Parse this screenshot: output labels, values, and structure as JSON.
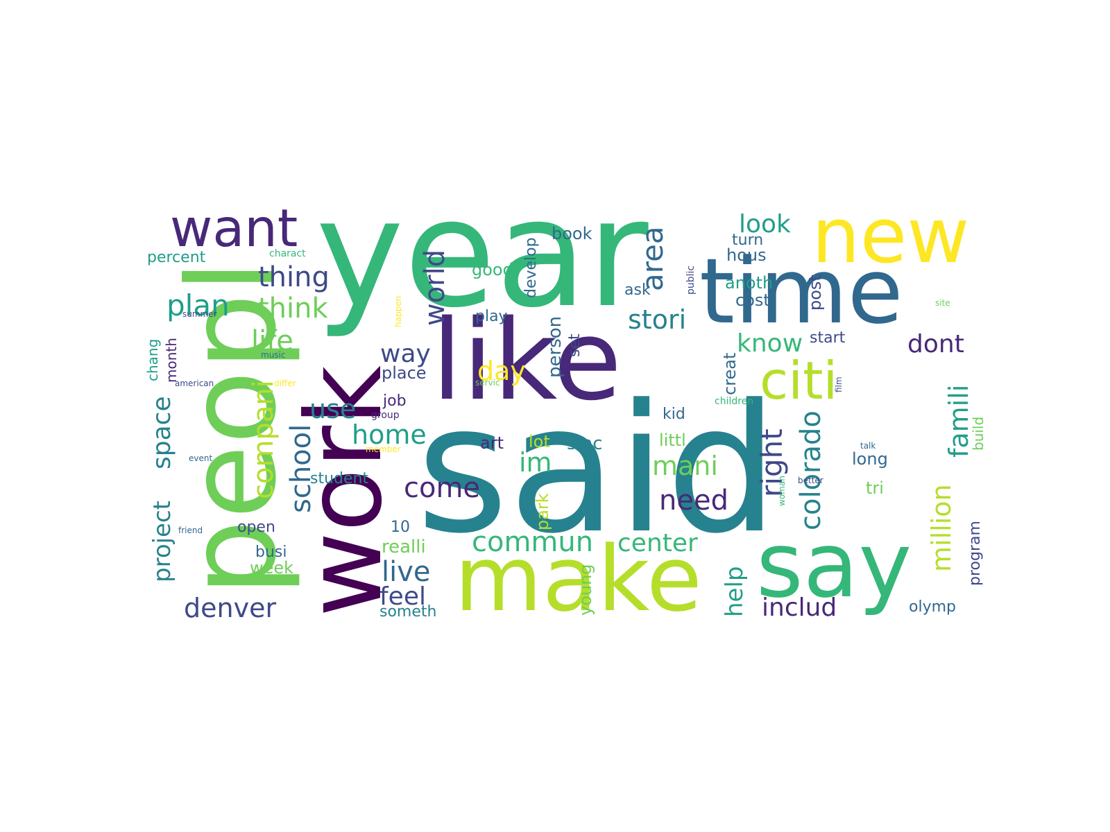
{
  "word_cloud": {
    "palette": [
      "#440154",
      "#482878",
      "#3e4989",
      "#31688e",
      "#26828e",
      "#1f9e89",
      "#35b779",
      "#6ece58",
      "#b5de2b",
      "#fde725"
    ],
    "words": [
      {
        "text": "said",
        "color": "#26828e"
      },
      {
        "text": "year",
        "color": "#35b779"
      },
      {
        "text": "like",
        "color": "#482878"
      },
      {
        "text": "time",
        "color": "#31688e"
      },
      {
        "text": "peopl",
        "color": "#6ece58"
      },
      {
        "text": "work",
        "color": "#440154"
      },
      {
        "text": "make",
        "color": "#b5de2b"
      },
      {
        "text": "say",
        "color": "#35b779"
      },
      {
        "text": "new",
        "color": "#fde725"
      },
      {
        "text": "citi",
        "color": "#b5de2b"
      },
      {
        "text": "want",
        "color": "#482878"
      },
      {
        "text": "world",
        "color": "#3e4989"
      },
      {
        "text": "plan",
        "color": "#1f9e89"
      },
      {
        "text": "think",
        "color": "#6ece58"
      },
      {
        "text": "thing",
        "color": "#3e4989"
      },
      {
        "text": "area",
        "color": "#31688e"
      },
      {
        "text": "look",
        "color": "#1f9e89"
      },
      {
        "text": "life",
        "color": "#6ece58"
      },
      {
        "text": "stori",
        "color": "#26828e"
      },
      {
        "text": "dont",
        "color": "#482878"
      },
      {
        "text": "know",
        "color": "#35b779"
      },
      {
        "text": "way",
        "color": "#3e4989"
      },
      {
        "text": "day",
        "color": "#fde725"
      },
      {
        "text": "compani",
        "color": "#b5de2b"
      },
      {
        "text": "school",
        "color": "#31688e"
      },
      {
        "text": "use",
        "color": "#26828e"
      },
      {
        "text": "home",
        "color": "#1f9e89"
      },
      {
        "text": "right",
        "color": "#3e4989"
      },
      {
        "text": "colorado",
        "color": "#26828e"
      },
      {
        "text": "famili",
        "color": "#1f9e89"
      },
      {
        "text": "million",
        "color": "#b5de2b"
      },
      {
        "text": "mani",
        "color": "#6ece58"
      },
      {
        "text": "im",
        "color": "#35b779"
      },
      {
        "text": "need",
        "color": "#482878"
      },
      {
        "text": "come",
        "color": "#482878"
      },
      {
        "text": "project",
        "color": "#26828e"
      },
      {
        "text": "space",
        "color": "#26828e"
      },
      {
        "text": "commun",
        "color": "#35b779"
      },
      {
        "text": "center",
        "color": "#35b779"
      },
      {
        "text": "denver",
        "color": "#3e4989"
      },
      {
        "text": "live",
        "color": "#31688e"
      },
      {
        "text": "feel",
        "color": "#3e4989"
      },
      {
        "text": "help",
        "color": "#1f9e89"
      },
      {
        "text": "includ",
        "color": "#482878"
      },
      {
        "text": "percent",
        "color": "#1f9e89"
      },
      {
        "text": "good",
        "color": "#35b779"
      },
      {
        "text": "develop",
        "color": "#31688e"
      },
      {
        "text": "book",
        "color": "#31688e"
      },
      {
        "text": "turn",
        "color": "#31688e"
      },
      {
        "text": "hous",
        "color": "#31688e"
      },
      {
        "text": "post",
        "color": "#3e4989"
      },
      {
        "text": "anoth",
        "color": "#1f9e89"
      },
      {
        "text": "cost",
        "color": "#31688e"
      },
      {
        "text": "ask",
        "color": "#31688e"
      },
      {
        "text": "play",
        "color": "#31688e"
      },
      {
        "text": "person",
        "color": "#31688e"
      },
      {
        "text": "set",
        "color": "#3e4989"
      },
      {
        "text": "creat",
        "color": "#31688e"
      },
      {
        "text": "start",
        "color": "#3e4989"
      },
      {
        "text": "place",
        "color": "#3e4989"
      },
      {
        "text": "job",
        "color": "#482878"
      },
      {
        "text": "chang",
        "color": "#1f9e89"
      },
      {
        "text": "month",
        "color": "#482878"
      },
      {
        "text": "kid",
        "color": "#31688e"
      },
      {
        "text": "art",
        "color": "#482878"
      },
      {
        "text": "lot",
        "color": "#b5de2b"
      },
      {
        "text": "sinc",
        "color": "#26828e"
      },
      {
        "text": "littl",
        "color": "#6ece58"
      },
      {
        "text": "long",
        "color": "#31688e"
      },
      {
        "text": "tri",
        "color": "#6ece58"
      },
      {
        "text": "student",
        "color": "#26828e"
      },
      {
        "text": "open",
        "color": "#3e4989"
      },
      {
        "text": "10",
        "color": "#31688e"
      },
      {
        "text": "realli",
        "color": "#6ece58"
      },
      {
        "text": "busi",
        "color": "#31688e"
      },
      {
        "text": "week",
        "color": "#6ece58"
      },
      {
        "text": "someth",
        "color": "#26828e"
      },
      {
        "text": "young",
        "color": "#6ece58"
      },
      {
        "text": "park",
        "color": "#b5de2b"
      },
      {
        "text": "build",
        "color": "#6ece58"
      },
      {
        "text": "program",
        "color": "#3e4989"
      },
      {
        "text": "olymp",
        "color": "#31688e"
      },
      {
        "text": "charact",
        "color": "#35b779"
      },
      {
        "text": "public",
        "color": "#3e4989"
      },
      {
        "text": "site",
        "color": "#6ece58"
      },
      {
        "text": "happen",
        "color": "#fde725"
      },
      {
        "text": "summer",
        "color": "#3e4989"
      },
      {
        "text": "music",
        "color": "#31688e"
      },
      {
        "text": "american",
        "color": "#3e4989"
      },
      {
        "text": "differ",
        "color": "#fde725"
      },
      {
        "text": "servic",
        "color": "#6ece58"
      },
      {
        "text": "film",
        "color": "#3e4989"
      },
      {
        "text": "children",
        "color": "#35b779"
      },
      {
        "text": "group",
        "color": "#482878"
      },
      {
        "text": "member",
        "color": "#fde725"
      },
      {
        "text": "event",
        "color": "#31688e"
      },
      {
        "text": "talk",
        "color": "#31688e"
      },
      {
        "text": "better",
        "color": "#3e4989"
      },
      {
        "text": "woman",
        "color": "#35b779"
      },
      {
        "text": "friend",
        "color": "#31688e"
      }
    ]
  }
}
